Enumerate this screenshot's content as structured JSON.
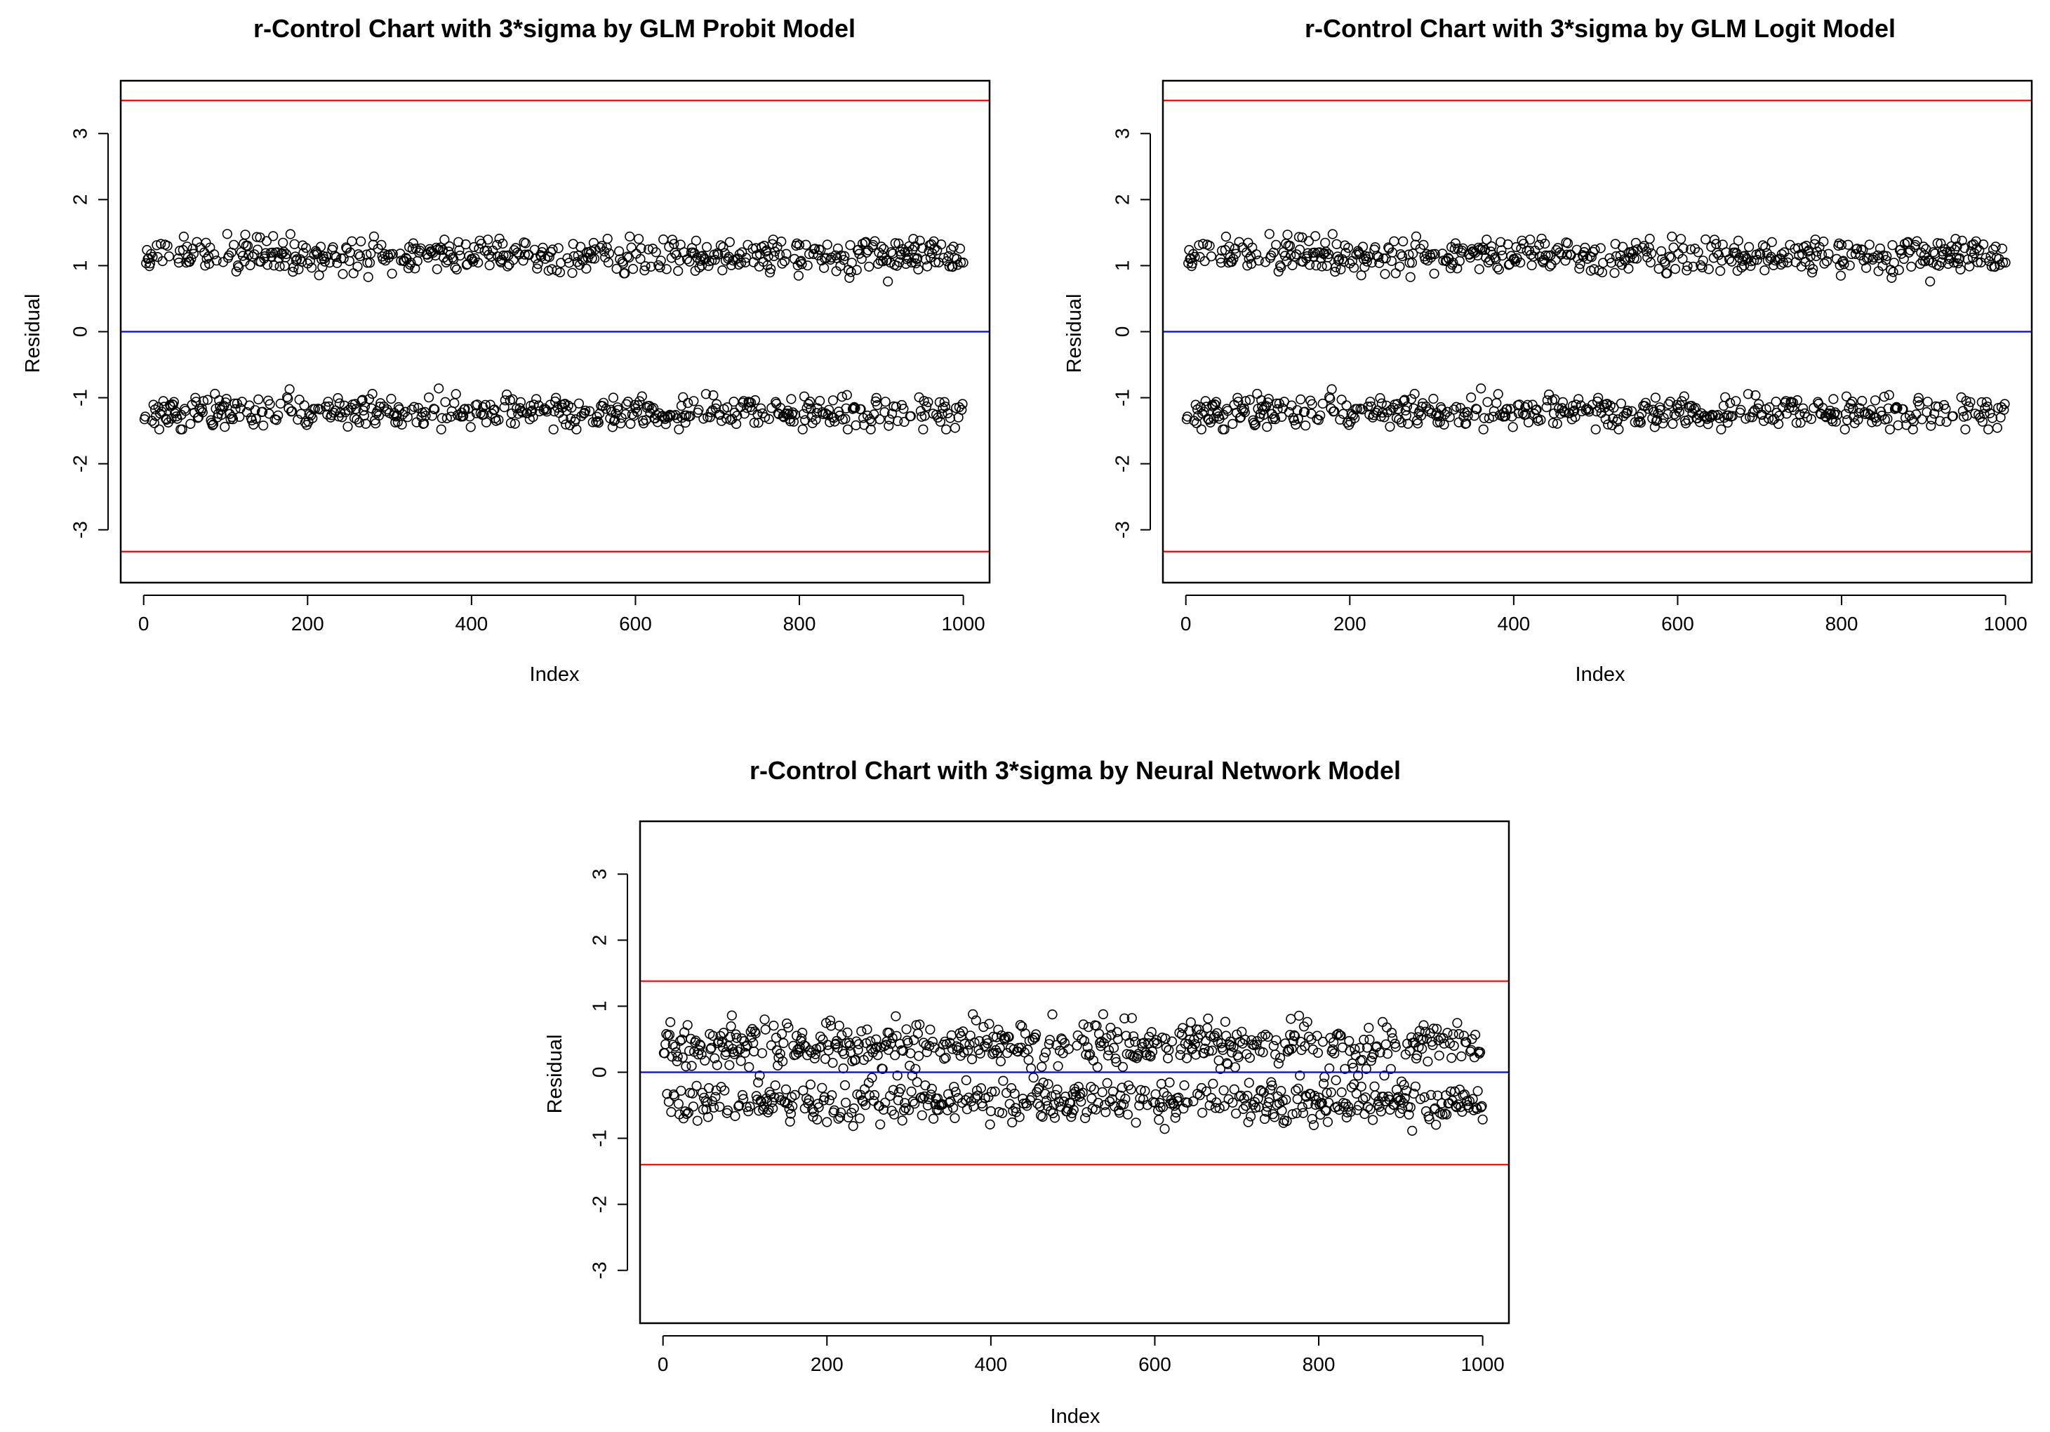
{
  "chart_data": [
    {
      "type": "scatter",
      "title": "r-Control Chart with 3*sigma by GLM Probit Model",
      "xlabel": "Index",
      "ylabel": "Residual",
      "xlim": [
        0,
        1000
      ],
      "ylim": [
        -3.8,
        3.8
      ],
      "x_ticks": [
        "0",
        "200",
        "400",
        "600",
        "800",
        "1000"
      ],
      "y_ticks": [
        "-3",
        "-2",
        "-1",
        "0",
        "1",
        "2",
        "3"
      ],
      "grid": false,
      "n_points": 1000,
      "point_style": "open-circle",
      "clusters": [
        {
          "name": "",
          "center": 1.15,
          "spread": 0.13,
          "min": 0.76,
          "max": 1.48
        },
        {
          "name": "",
          "center": -1.22,
          "spread": 0.12,
          "min": -1.48,
          "max": -0.86
        }
      ],
      "reference_lines": {
        "ucl": 3.5,
        "center": 0,
        "lcl": -3.33
      },
      "colors": {
        "ucl": "#ff0000",
        "center": "#0000ff",
        "lcl": "#ff0000",
        "points": "#000000"
      }
    },
    {
      "type": "scatter",
      "title": "r-Control Chart with 3*sigma by GLM Logit Model",
      "xlabel": "Index",
      "ylabel": "Residual",
      "xlim": [
        0,
        1000
      ],
      "ylim": [
        -3.8,
        3.8
      ],
      "x_ticks": [
        "0",
        "200",
        "400",
        "600",
        "800",
        "1000"
      ],
      "y_ticks": [
        "-3",
        "-2",
        "-1",
        "0",
        "1",
        "2",
        "3"
      ],
      "grid": false,
      "n_points": 1000,
      "point_style": "open-circle",
      "clusters": [
        {
          "name": "",
          "center": 1.15,
          "spread": 0.13,
          "min": 0.76,
          "max": 1.48
        },
        {
          "name": "",
          "center": -1.22,
          "spread": 0.12,
          "min": -1.48,
          "max": -0.86
        }
      ],
      "reference_lines": {
        "ucl": 3.5,
        "center": 0,
        "lcl": -3.33
      },
      "colors": {
        "ucl": "#ff0000",
        "center": "#0000ff",
        "lcl": "#ff0000",
        "points": "#000000"
      }
    },
    {
      "type": "scatter",
      "title": "r-Control Chart with 3*sigma by Neural Network Model",
      "xlabel": "Index",
      "ylabel": "Residual",
      "xlim": [
        0,
        1000
      ],
      "ylim": [
        -3.8,
        3.8
      ],
      "x_ticks": [
        "0",
        "200",
        "400",
        "600",
        "800",
        "1000"
      ],
      "y_ticks": [
        "-3",
        "-2",
        "-1",
        "0",
        "1",
        "2",
        "3"
      ],
      "grid": false,
      "n_points": 1000,
      "point_style": "open-circle",
      "clusters": [
        {
          "name": "",
          "center": 0.42,
          "spread": 0.17,
          "min": 0.05,
          "max": 0.98
        },
        {
          "name": "",
          "center": -0.45,
          "spread": 0.16,
          "min": -0.95,
          "max": -0.05
        }
      ],
      "reference_lines": {
        "ucl": 1.38,
        "center": 0,
        "lcl": -1.4
      },
      "colors": {
        "ucl": "#ff0000",
        "center": "#0000ff",
        "lcl": "#ff0000",
        "points": "#000000"
      }
    }
  ]
}
